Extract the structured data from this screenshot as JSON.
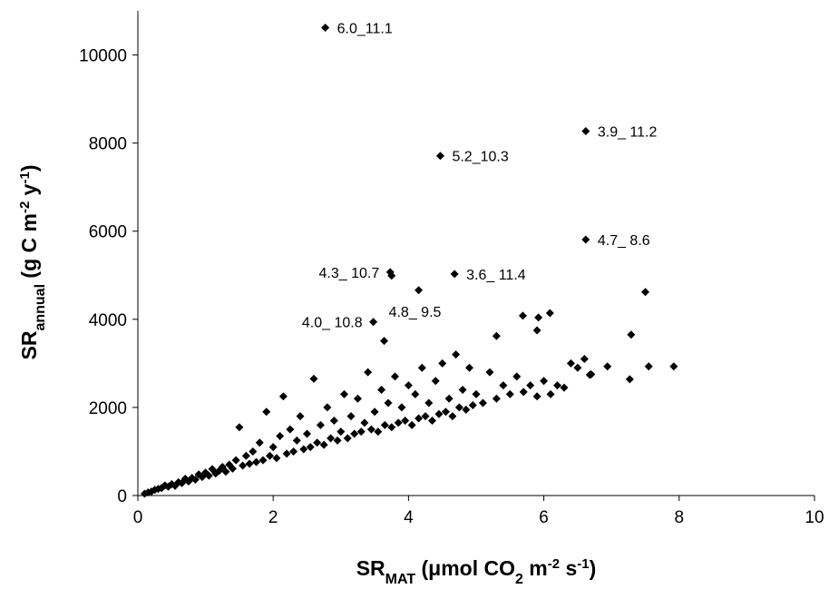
{
  "chart_data": {
    "type": "scatter",
    "x_label": [
      "SR",
      "MAT",
      " (μmol CO",
      "2",
      " m",
      "-2",
      " s",
      "-1",
      ")"
    ],
    "x_label_style": [
      "normal",
      "sub",
      "normal",
      "sub",
      "normal",
      "super",
      "normal",
      "super",
      "normal"
    ],
    "y_label": [
      "SR",
      "annual",
      " (g C m",
      "-2",
      " y",
      "-1",
      ")"
    ],
    "y_label_style": [
      "normal",
      "sub",
      "normal",
      "super",
      "normal",
      "super",
      "normal"
    ],
    "xlim": [
      0,
      10
    ],
    "xticks": [
      0,
      2,
      4,
      6,
      8,
      10
    ],
    "ylim": [
      0,
      11000
    ],
    "yticks": [
      0,
      2000,
      4000,
      6000,
      8000,
      10000
    ],
    "series": [
      {
        "color": "#000000",
        "x": [
          0.1,
          0.15,
          0.2,
          0.25,
          0.3,
          0.35,
          0.4,
          0.45,
          0.5,
          0.55,
          0.6,
          0.65,
          0.7,
          0.75,
          0.8,
          0.85,
          0.9,
          0.95,
          1.0,
          1.05,
          1.1,
          1.15,
          1.2,
          1.25,
          1.3,
          1.35,
          1.4,
          1.45,
          1.5,
          1.55,
          1.6,
          1.65,
          1.7,
          1.75,
          1.8,
          1.85,
          1.9,
          1.95,
          2.0,
          2.05,
          2.1,
          2.15,
          2.2,
          2.25,
          2.3,
          2.35,
          2.4,
          2.45,
          2.5,
          2.55,
          2.6,
          2.65,
          2.7,
          2.75,
          2.8,
          2.85,
          2.9,
          2.95,
          3.0,
          3.05,
          3.1,
          3.15,
          3.2,
          3.25,
          3.3,
          3.35,
          3.4,
          3.45,
          3.5,
          3.55,
          3.6,
          3.65,
          3.7,
          3.75,
          3.8,
          3.85,
          3.9,
          3.95,
          4.0,
          4.05,
          4.1,
          4.15,
          4.2,
          4.25,
          4.3,
          4.35,
          4.4,
          4.45,
          4.5,
          4.55,
          4.6,
          4.65,
          4.7,
          4.75,
          4.8,
          4.85,
          4.9,
          4.95,
          5.0,
          5.1,
          5.2,
          5.3,
          5.4,
          5.5,
          5.6,
          5.7,
          5.8,
          5.9,
          6.0,
          6.1,
          6.2,
          6.3,
          6.4,
          6.5,
          6.6,
          6.7,
          7.5,
          7.29,
          6.94,
          7.27,
          7.55,
          7.92,
          6.68,
          3.64,
          5.69,
          5.92,
          6.09,
          5.3,
          5.9
        ],
        "values": [
          40,
          70,
          90,
          130,
          150,
          170,
          230,
          200,
          260,
          220,
          300,
          280,
          380,
          320,
          400,
          360,
          480,
          420,
          520,
          450,
          600,
          500,
          560,
          650,
          540,
          700,
          610,
          800,
          1550,
          680,
          900,
          720,
          1000,
          760,
          1200,
          800,
          1900,
          900,
          1100,
          850,
          1350,
          2250,
          950,
          1500,
          1000,
          1250,
          1800,
          1050,
          1400,
          1100,
          2650,
          1200,
          1600,
          1150,
          2000,
          1300,
          1700,
          1250,
          1450,
          2300,
          1300,
          1800,
          1400,
          2200,
          1450,
          1650,
          2800,
          1500,
          1900,
          1450,
          2400,
          1600,
          2100,
          1550,
          2700,
          1650,
          2000,
          1700,
          2500,
          1600,
          2300,
          1750,
          2900,
          1800,
          2100,
          1700,
          2600,
          1850,
          3000,
          1900,
          2200,
          1800,
          3200,
          2000,
          2400,
          1950,
          2900,
          2050,
          2300,
          2100,
          2800,
          2200,
          2500,
          2300,
          2700,
          2350,
          2500,
          2250,
          2600,
          2300,
          2500,
          2450,
          3000,
          2900,
          3100,
          2750,
          4620,
          3650,
          2930,
          2640,
          2930,
          2930,
          2740,
          3510,
          4080,
          4040,
          4140,
          3620,
          3750
        ]
      },
      {
        "color": "#000000",
        "x": [
          2.77,
          6.62,
          4.47,
          6.62,
          3.73,
          3.75,
          4.68,
          4.15,
          3.48
        ],
        "values": [
          10620,
          8270,
          7710,
          5810,
          5070,
          4990,
          5030,
          4660,
          3940
        ],
        "labels": [
          "6.0_11.1",
          "3.9_ 11.2",
          "5.2_10.3",
          "4.7_ 8.6",
          "4.3_ 10.7",
          null,
          "3.6_ 11.4",
          "4.8_ 9.5",
          "4.0_ 10.8"
        ],
        "label_side": [
          "right",
          "right",
          "right",
          "right",
          "left",
          null,
          "right",
          "below",
          "left"
        ]
      }
    ]
  }
}
